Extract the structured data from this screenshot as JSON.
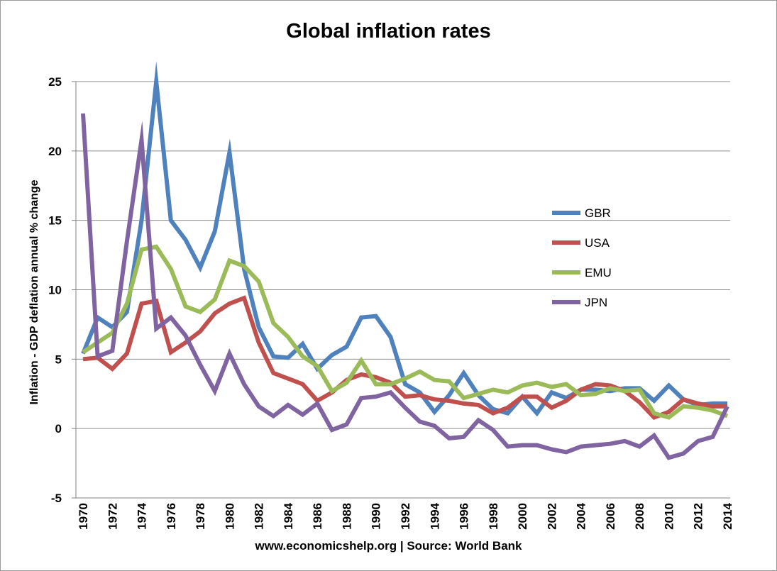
{
  "chart_data": {
    "type": "line",
    "title": "Global inflation rates",
    "xlabel": "",
    "ylabel": "Inflation - GDP deflation annual % change",
    "footer": "www.economicshelp.org | Source: World Bank",
    "ylim": [
      -5,
      25
    ],
    "yticks": [
      -5,
      0,
      5,
      10,
      15,
      20,
      25
    ],
    "x": [
      1970,
      1971,
      1972,
      1973,
      1974,
      1975,
      1976,
      1977,
      1978,
      1979,
      1980,
      1981,
      1982,
      1983,
      1984,
      1985,
      1986,
      1987,
      1988,
      1989,
      1990,
      1991,
      1992,
      1993,
      1994,
      1995,
      1996,
      1997,
      1998,
      1999,
      2000,
      2001,
      2002,
      2003,
      2004,
      2005,
      2006,
      2007,
      2008,
      2009,
      2010,
      2011,
      2012,
      2013,
      2014
    ],
    "xticks": [
      1970,
      1972,
      1974,
      1976,
      1978,
      1980,
      1982,
      1984,
      1986,
      1988,
      1990,
      1992,
      1994,
      1996,
      1998,
      2000,
      2002,
      2004,
      2006,
      2008,
      2010,
      2012,
      2014
    ],
    "grid": true,
    "legend_position": "right",
    "series": [
      {
        "name": "GBR",
        "color": "#4f81bd",
        "values": [
          5.4,
          8.0,
          7.3,
          8.4,
          15.0,
          25.0,
          15.0,
          13.6,
          11.6,
          14.2,
          19.9,
          11.5,
          7.3,
          5.2,
          5.1,
          6.1,
          4.3,
          5.3,
          5.9,
          8.0,
          8.1,
          6.6,
          3.2,
          2.6,
          1.2,
          2.4,
          4.0,
          2.4,
          1.4,
          1.1,
          2.3,
          1.1,
          2.6,
          2.2,
          2.8,
          2.8,
          2.7,
          2.9,
          2.9,
          2.0,
          3.1,
          2.1,
          1.7,
          1.8,
          1.8
        ]
      },
      {
        "name": "USA",
        "color": "#c0504d",
        "values": [
          5.0,
          5.1,
          4.3,
          5.4,
          9.0,
          9.2,
          5.5,
          6.2,
          7.0,
          8.3,
          9.0,
          9.4,
          6.2,
          4.0,
          3.6,
          3.2,
          2.0,
          2.6,
          3.5,
          3.9,
          3.7,
          3.3,
          2.3,
          2.4,
          2.1,
          2.0,
          1.8,
          1.7,
          1.1,
          1.5,
          2.3,
          2.3,
          1.5,
          2.0,
          2.8,
          3.2,
          3.1,
          2.7,
          1.9,
          0.8,
          1.2,
          2.1,
          1.8,
          1.6,
          1.6
        ]
      },
      {
        "name": "EMU",
        "color": "#9bbb59",
        "values": [
          5.5,
          6.2,
          6.9,
          9.0,
          12.9,
          13.1,
          11.5,
          8.8,
          8.4,
          9.3,
          12.1,
          11.7,
          10.6,
          7.6,
          6.6,
          5.2,
          4.5,
          2.7,
          3.3,
          4.9,
          3.2,
          3.2,
          3.6,
          4.1,
          3.5,
          3.4,
          2.2,
          2.5,
          2.8,
          2.6,
          3.1,
          3.3,
          3.0,
          3.2,
          2.4,
          2.5,
          2.9,
          2.7,
          2.8,
          1.1,
          0.8,
          1.6,
          1.5,
          1.3,
          0.9
        ]
      },
      {
        "name": "JPN",
        "color": "#8064a2",
        "values": [
          22.7,
          5.2,
          5.6,
          13.5,
          20.8,
          7.2,
          8.0,
          6.7,
          4.6,
          2.7,
          5.4,
          3.2,
          1.6,
          0.9,
          1.7,
          1.0,
          1.8,
          -0.1,
          0.3,
          2.2,
          2.3,
          2.6,
          1.5,
          0.5,
          0.2,
          -0.7,
          -0.6,
          0.6,
          -0.1,
          -1.3,
          -1.2,
          -1.2,
          -1.5,
          -1.7,
          -1.3,
          -1.2,
          -1.1,
          -0.9,
          -1.3,
          -0.5,
          -2.1,
          -1.8,
          -0.9,
          -0.6,
          1.6
        ]
      }
    ]
  }
}
